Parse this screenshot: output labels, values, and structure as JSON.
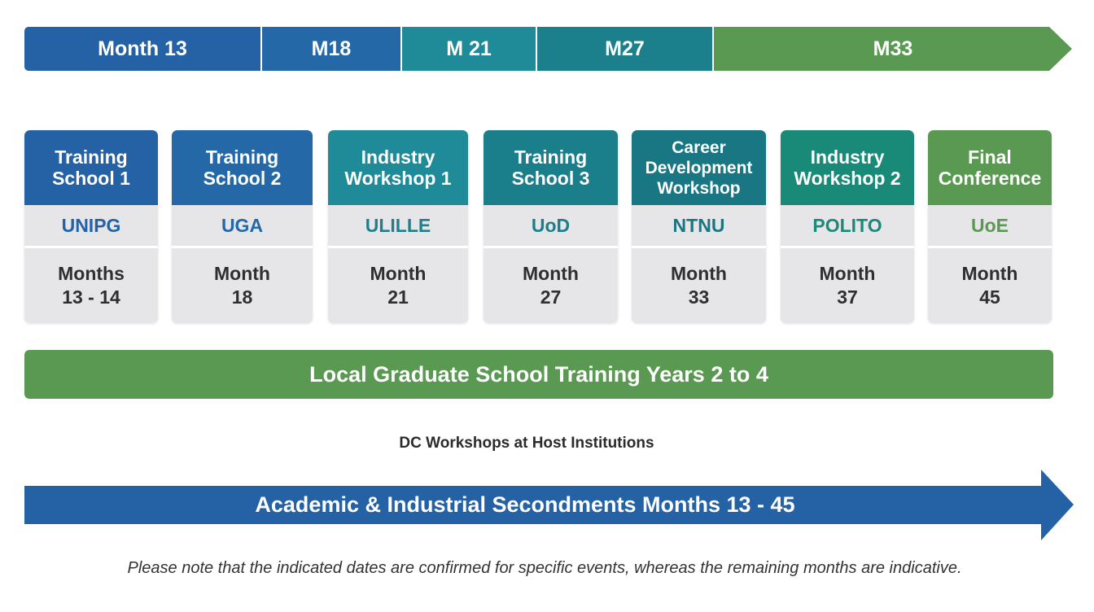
{
  "colors": {
    "blue": "#2462a5",
    "blue_mid": "#2476a8",
    "teal": "#1f8a98",
    "teal_dark": "#1a7a88",
    "green": "#5a9952",
    "card_bg": "#e6e6e8"
  },
  "timeline": [
    {
      "label": "Month 13",
      "color": "#2462a5"
    },
    {
      "label": "M18",
      "color": "#2468a8"
    },
    {
      "label": "M 21",
      "color": "#1f8a98"
    },
    {
      "label": "M27",
      "color": "#1c7f8c"
    },
    {
      "label": "M33",
      "color": "#5a9952"
    }
  ],
  "events": [
    {
      "title": "Training\nSchool 1",
      "institution": "UNIPG",
      "month": "Months\n13 - 14",
      "color": "#2462a5",
      "inst_color": "#2462a5"
    },
    {
      "title": "Training\nSchool 2",
      "institution": "UGA",
      "month": "Month\n18",
      "color": "#2468a8",
      "inst_color": "#2468a8"
    },
    {
      "title": "Industry\nWorkshop 1",
      "institution": "ULILLE",
      "month": "Month\n21",
      "color": "#1f8a98",
      "inst_color": "#1f7f8c"
    },
    {
      "title": "Training\nSchool 3",
      "institution": "UoD",
      "month": "Month\n27",
      "color": "#1a7f8a",
      "inst_color": "#1a7f8a"
    },
    {
      "title": "Career\nDevelopment\nWorkshop",
      "institution": "NTNU",
      "month": "Month\n33",
      "color": "#197683",
      "inst_color": "#197683"
    },
    {
      "title": "Industry\nWorkshop 2",
      "institution": "POLITO",
      "month": "Month\n37",
      "color": "#1a8a78",
      "inst_color": "#1a8a78"
    },
    {
      "title": "Final\nConference",
      "institution": "UoE",
      "month": "Month\n45",
      "color": "#5a9952",
      "inst_color": "#5a9952"
    }
  ],
  "local_training_label": "Local Graduate School Training Years 2 to 4",
  "dc_workshops_label": "DC Workshops at Host Institutions",
  "secondments_label": "Academic & Industrial Secondments Months 13 - 45",
  "note": "Please note that the indicated dates are confirmed for specific events, whereas the remaining months are indicative."
}
